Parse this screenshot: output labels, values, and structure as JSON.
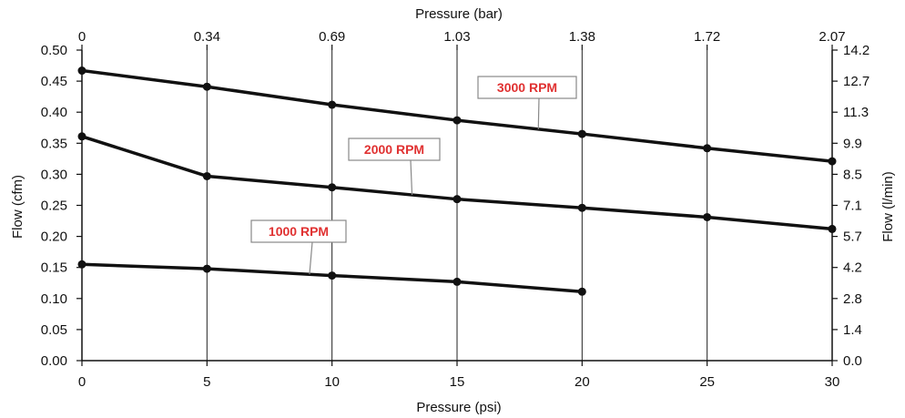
{
  "chart_data": {
    "type": "line",
    "title": "",
    "xlabel": "Pressure (psi)",
    "x2label": "Pressure (bar)",
    "ylabel": "Flow (cfm)",
    "y2label": "Flow (l/min)",
    "xlim": [
      0,
      30
    ],
    "ylim": [
      0,
      0.5
    ],
    "x_ticks": [
      "0",
      "5",
      "10",
      "15",
      "20",
      "25",
      "30"
    ],
    "x2_ticks": [
      "0",
      "0.34",
      "0.69",
      "1.03",
      "1.38",
      "1.72",
      "2.07"
    ],
    "y_ticks": [
      "0.00",
      "0.05",
      "0.10",
      "0.15",
      "0.20",
      "0.25",
      "0.30",
      "0.35",
      "0.40",
      "0.45",
      "0.50"
    ],
    "y2_ticks": [
      "0.0",
      "1.4",
      "2.8",
      "4.2",
      "5.7",
      "7.1",
      "8.5",
      "9.9",
      "11.3",
      "12.7",
      "14.2"
    ],
    "grid": "vertical",
    "series": [
      {
        "name": "3000 RPM",
        "x": [
          0,
          5,
          10,
          15,
          20,
          25,
          30
        ],
        "y": [
          0.467,
          0.441,
          0.412,
          0.387,
          0.365,
          0.342,
          0.321
        ]
      },
      {
        "name": "2000 RPM",
        "x": [
          0,
          5,
          10,
          15,
          20,
          25,
          30
        ],
        "y": [
          0.361,
          0.297,
          0.279,
          0.26,
          0.246,
          0.231,
          0.212
        ]
      },
      {
        "name": "1000 RPM",
        "x": [
          0,
          5,
          10,
          15,
          20
        ],
        "y": [
          0.155,
          0.148,
          0.137,
          0.127,
          0.111
        ]
      }
    ],
    "colors": {
      "line": "#111111",
      "label_text": "#e03131",
      "label_border": "#888888"
    }
  }
}
